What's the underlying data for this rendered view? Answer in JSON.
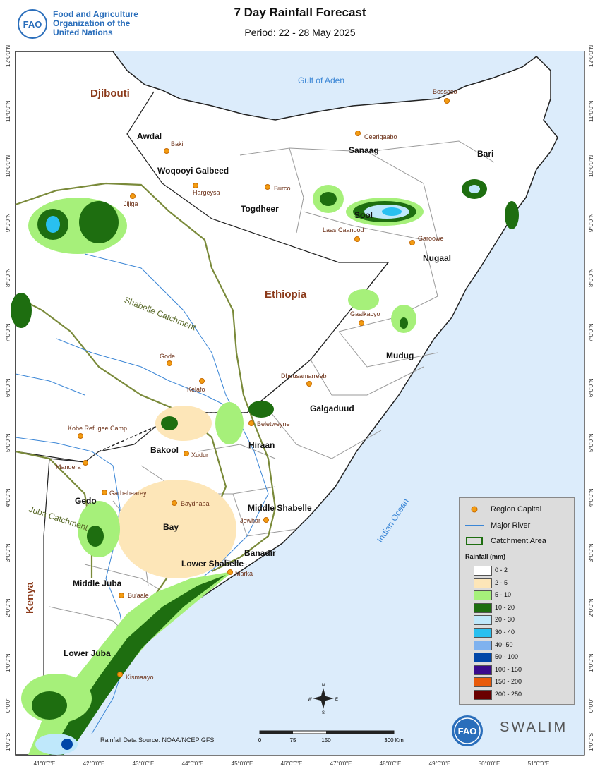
{
  "header": {
    "org_line1": "Food and Agriculture",
    "org_line2": "Organization of the",
    "org_line3": "United Nations",
    "title": "7 Day Rainfall Forecast",
    "period": "Period: 22 - 28 May 2025"
  },
  "water_labels": {
    "gulf": "Gulf of Aden",
    "ocean": "Indian Ocean"
  },
  "countries": {
    "djibouti": "Djibouti",
    "ethiopia": "Ethiopia",
    "kenya": "Kenya"
  },
  "regions": [
    "Awdal",
    "Woqooyi Galbeed",
    "Togdheer",
    "Sanaag",
    "Sool",
    "Bari",
    "Nugaal",
    "Mudug",
    "Galgaduud",
    "Hiraan",
    "Bakool",
    "Gedo",
    "Bay",
    "Middle Shabelle",
    "Banadir",
    "Lower Shabelle",
    "Middle Juba",
    "Lower Juba"
  ],
  "towns": [
    "Bossaso",
    "Ceerigaabo",
    "Baki",
    "Burco",
    "Hargeysa",
    "Jijiga",
    "Laas Caanood",
    "Garoowe",
    "Gaalkacyo",
    "Dhuusamarreeb",
    "Gode",
    "Kelafo",
    "Beletweyne",
    "Kobe Refugee Camp",
    "Mandera",
    "Xudur",
    "Garbahaarey",
    "Baydhaba",
    "Jowhar",
    "Marka",
    "Bu'aale",
    "Kismaayo"
  ],
  "catchments": {
    "shabelle": "Shabelle Catchment",
    "juba": "Juba Catchment"
  },
  "axes": {
    "lat_ticks": [
      "12°0'0\"N",
      "11°0'0\"N",
      "10°0'0\"N",
      "9°0'0\"N",
      "8°0'0\"N",
      "7°0'0\"N",
      "6°0'0\"N",
      "5°0'0\"N",
      "4°0'0\"N",
      "3°0'0\"N",
      "2°0'0\"N",
      "1°0'0\"N",
      "0°0'0\"",
      "1°0'0\"S"
    ],
    "lon_ticks": [
      "41°0'0\"E",
      "42°0'0\"E",
      "43°0'0\"E",
      "44°0'0\"E",
      "45°0'0\"E",
      "46°0'0\"E",
      "47°0'0\"E",
      "48°0'0\"E",
      "49°0'0\"E",
      "50°0'0\"E",
      "51°0'0\"E"
    ]
  },
  "legend": {
    "region_capital": "Region Capital",
    "major_river": "Major River",
    "catchment_area": "Catchment Area",
    "rainfall_title": "Rainfall (mm)",
    "classes": [
      {
        "label": "0 - 2",
        "color": "#ffffff"
      },
      {
        "label": "2 - 5",
        "color": "#fde6b8"
      },
      {
        "label": "5 - 10",
        "color": "#a6f07a"
      },
      {
        "label": "10 - 20",
        "color": "#1e6e10"
      },
      {
        "label": "20 - 30",
        "color": "#bfe8fb"
      },
      {
        "label": "30 - 40",
        "color": "#29c0f0"
      },
      {
        "label": "40- 50",
        "color": "#7fb2ef"
      },
      {
        "label": "50 - 100",
        "color": "#0046a8"
      },
      {
        "label": "100 - 150",
        "color": "#3a0a8c"
      },
      {
        "label": "150 - 200",
        "color": "#e85a0a"
      },
      {
        "label": "200 - 250",
        "color": "#6a0000"
      }
    ]
  },
  "scale": {
    "labels": [
      "0",
      "75",
      "150",
      "300 Km"
    ]
  },
  "source": "Rainfall Data Source: NOAA/NCEP GFS",
  "compass": {
    "n": "N",
    "s": "S",
    "e": "E",
    "w": "W"
  },
  "swalim": "SWALIM"
}
